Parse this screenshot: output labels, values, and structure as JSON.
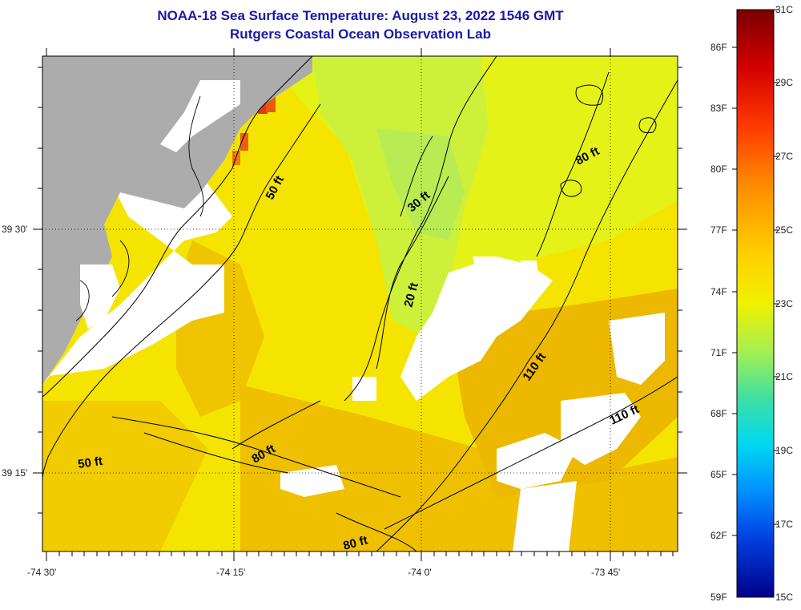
{
  "header": {
    "title_line1": "NOAA-18 Sea Surface Temperature:  August 23, 2022 1546 GMT",
    "title_line2": "Rutgers Coastal Ocean Observation Lab"
  },
  "map": {
    "lon_labels": [
      "-74 30'",
      "-74 15'",
      "-74 0'",
      "-73 45'"
    ],
    "lat_labels": [
      "39 30'",
      "39 15'"
    ],
    "contour_labels": [
      "50 ft",
      "30 ft",
      "20 ft",
      "80 ft",
      "110 ft",
      "110 ft",
      "50 ft",
      "80 ft",
      "80 ft"
    ],
    "colors": {
      "land": "#acacac",
      "cloud": "#ffffff",
      "sst_warm": "#f5e400",
      "sst_orange": "#ecb800",
      "sst_green": "#cdf03a",
      "sst_hot": "#e03a10"
    }
  },
  "colorbar": {
    "f_labels": [
      "86F",
      "83F",
      "80F",
      "77F",
      "74F",
      "71F",
      "68F",
      "65F",
      "62F",
      "59F"
    ],
    "c_labels": [
      "31C",
      "29C",
      "27C",
      "25C",
      "23C",
      "21C",
      "19C",
      "17C",
      "15C"
    ]
  }
}
